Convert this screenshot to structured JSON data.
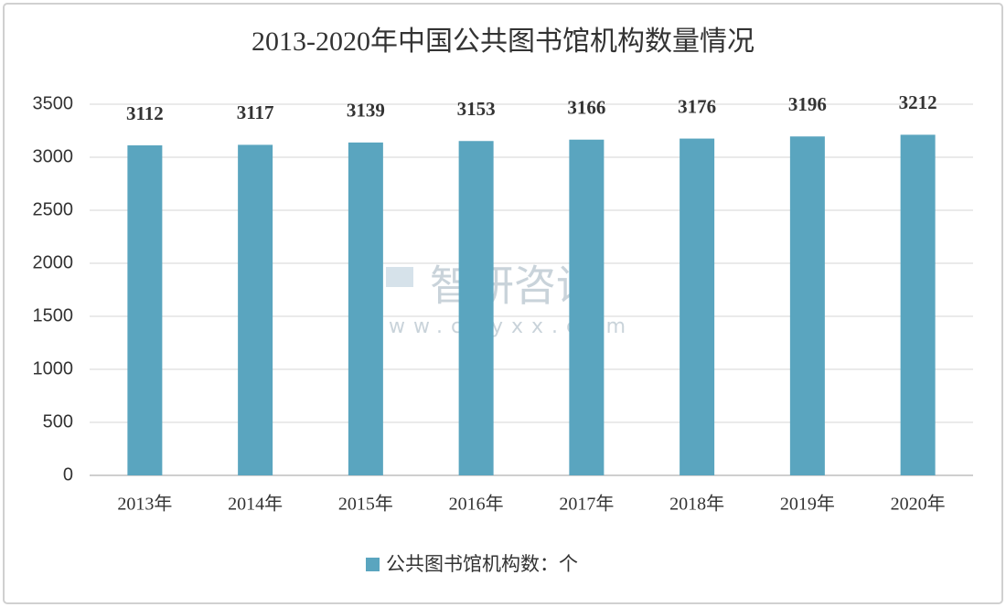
{
  "chart_data": {
    "type": "bar",
    "title": "2013-2020年中国公共图书馆机构数量情况",
    "categories": [
      "2013年",
      "2014年",
      "2015年",
      "2016年",
      "2017年",
      "2018年",
      "2019年",
      "2020年"
    ],
    "series": [
      {
        "name": "公共图书馆机构数：个",
        "color": "#5aa5bf",
        "values": [
          3112,
          3117,
          3139,
          3153,
          3166,
          3176,
          3196,
          3212
        ]
      }
    ],
    "ylim": [
      0,
      3500
    ],
    "yticks": [
      0,
      500,
      1000,
      1500,
      2000,
      2500,
      3000,
      3500
    ],
    "grid": true,
    "legend": "bottom",
    "watermark": {
      "brand": "智研咨询",
      "url": "www.chyxx.com"
    }
  }
}
